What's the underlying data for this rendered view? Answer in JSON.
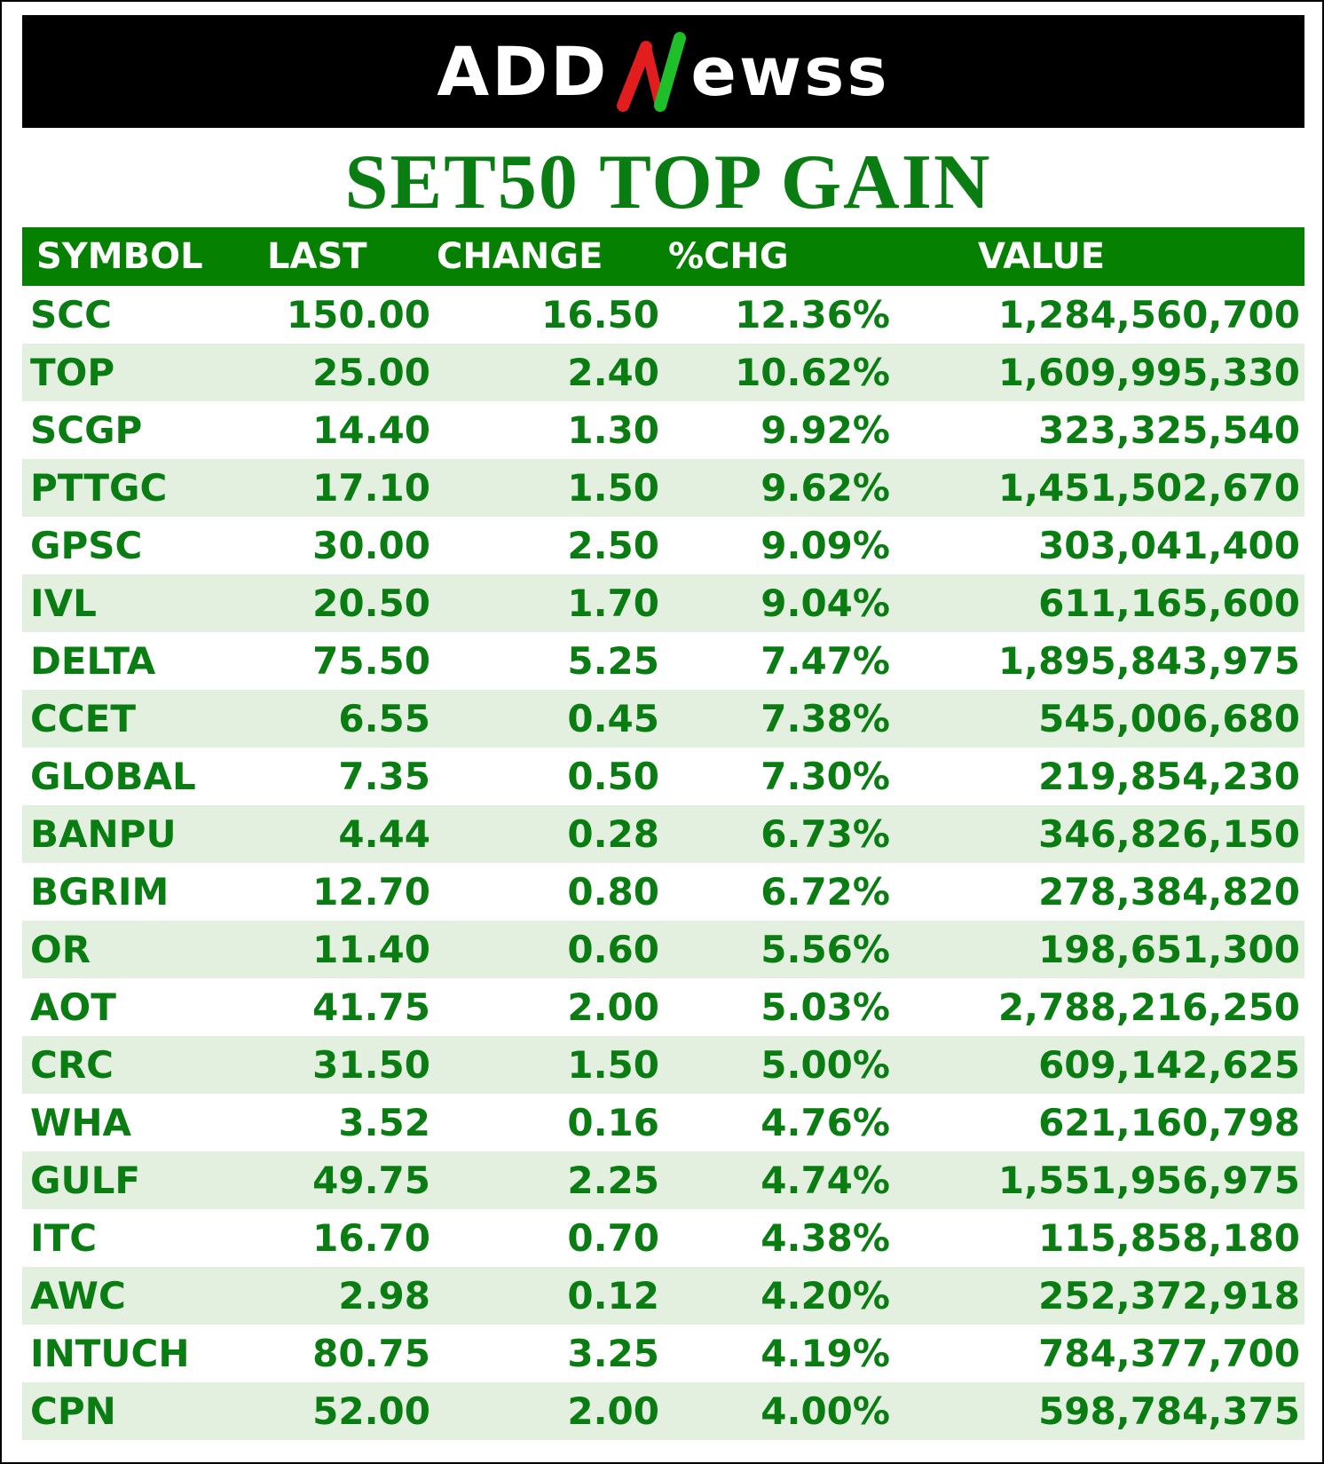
{
  "brand": {
    "logo_text_left": "ADD",
    "logo_text_right": "ewss",
    "logo_colors": {
      "red": "#e11d1d",
      "green": "#1fbf2a"
    }
  },
  "title": "SET50 TOP GAIN",
  "table": {
    "headers": [
      "SYMBOL",
      "LAST",
      "CHANGE",
      "%CHG",
      "VALUE"
    ],
    "rows": [
      [
        "SCC",
        "150.00",
        "16.50",
        "12.36%",
        "1,284,560,700"
      ],
      [
        "TOP",
        "25.00",
        "2.40",
        "10.62%",
        "1,609,995,330"
      ],
      [
        "SCGP",
        "14.40",
        "1.30",
        "9.92%",
        "323,325,540"
      ],
      [
        "PTTGC",
        "17.10",
        "1.50",
        "9.62%",
        "1,451,502,670"
      ],
      [
        "GPSC",
        "30.00",
        "2.50",
        "9.09%",
        "303,041,400"
      ],
      [
        "IVL",
        "20.50",
        "1.70",
        "9.04%",
        "611,165,600"
      ],
      [
        "DELTA",
        "75.50",
        "5.25",
        "7.47%",
        "1,895,843,975"
      ],
      [
        "CCET",
        "6.55",
        "0.45",
        "7.38%",
        "545,006,680"
      ],
      [
        "GLOBAL",
        "7.35",
        "0.50",
        "7.30%",
        "219,854,230"
      ],
      [
        "BANPU",
        "4.44",
        "0.28",
        "6.73%",
        "346,826,150"
      ],
      [
        "BGRIM",
        "12.70",
        "0.80",
        "6.72%",
        "278,384,820"
      ],
      [
        "OR",
        "11.40",
        "0.60",
        "5.56%",
        "198,651,300"
      ],
      [
        "AOT",
        "41.75",
        "2.00",
        "5.03%",
        "2,788,216,250"
      ],
      [
        "CRC",
        "31.50",
        "1.50",
        "5.00%",
        "609,142,625"
      ],
      [
        "WHA",
        "3.52",
        "0.16",
        "4.76%",
        "621,160,798"
      ],
      [
        "GULF",
        "49.75",
        "2.25",
        "4.74%",
        "1,551,956,975"
      ],
      [
        "ITC",
        "16.70",
        "0.70",
        "4.38%",
        "115,858,180"
      ],
      [
        "AWC",
        "2.98",
        "0.12",
        "4.20%",
        "252,372,918"
      ],
      [
        "INTUCH",
        "80.75",
        "3.25",
        "4.19%",
        "784,377,700"
      ],
      [
        "CPN",
        "52.00",
        "2.00",
        "4.00%",
        "598,784,375"
      ]
    ]
  },
  "colors": {
    "text_green": "#0a7d12",
    "header_green": "#068000",
    "row_alt": "#e3f0df"
  }
}
